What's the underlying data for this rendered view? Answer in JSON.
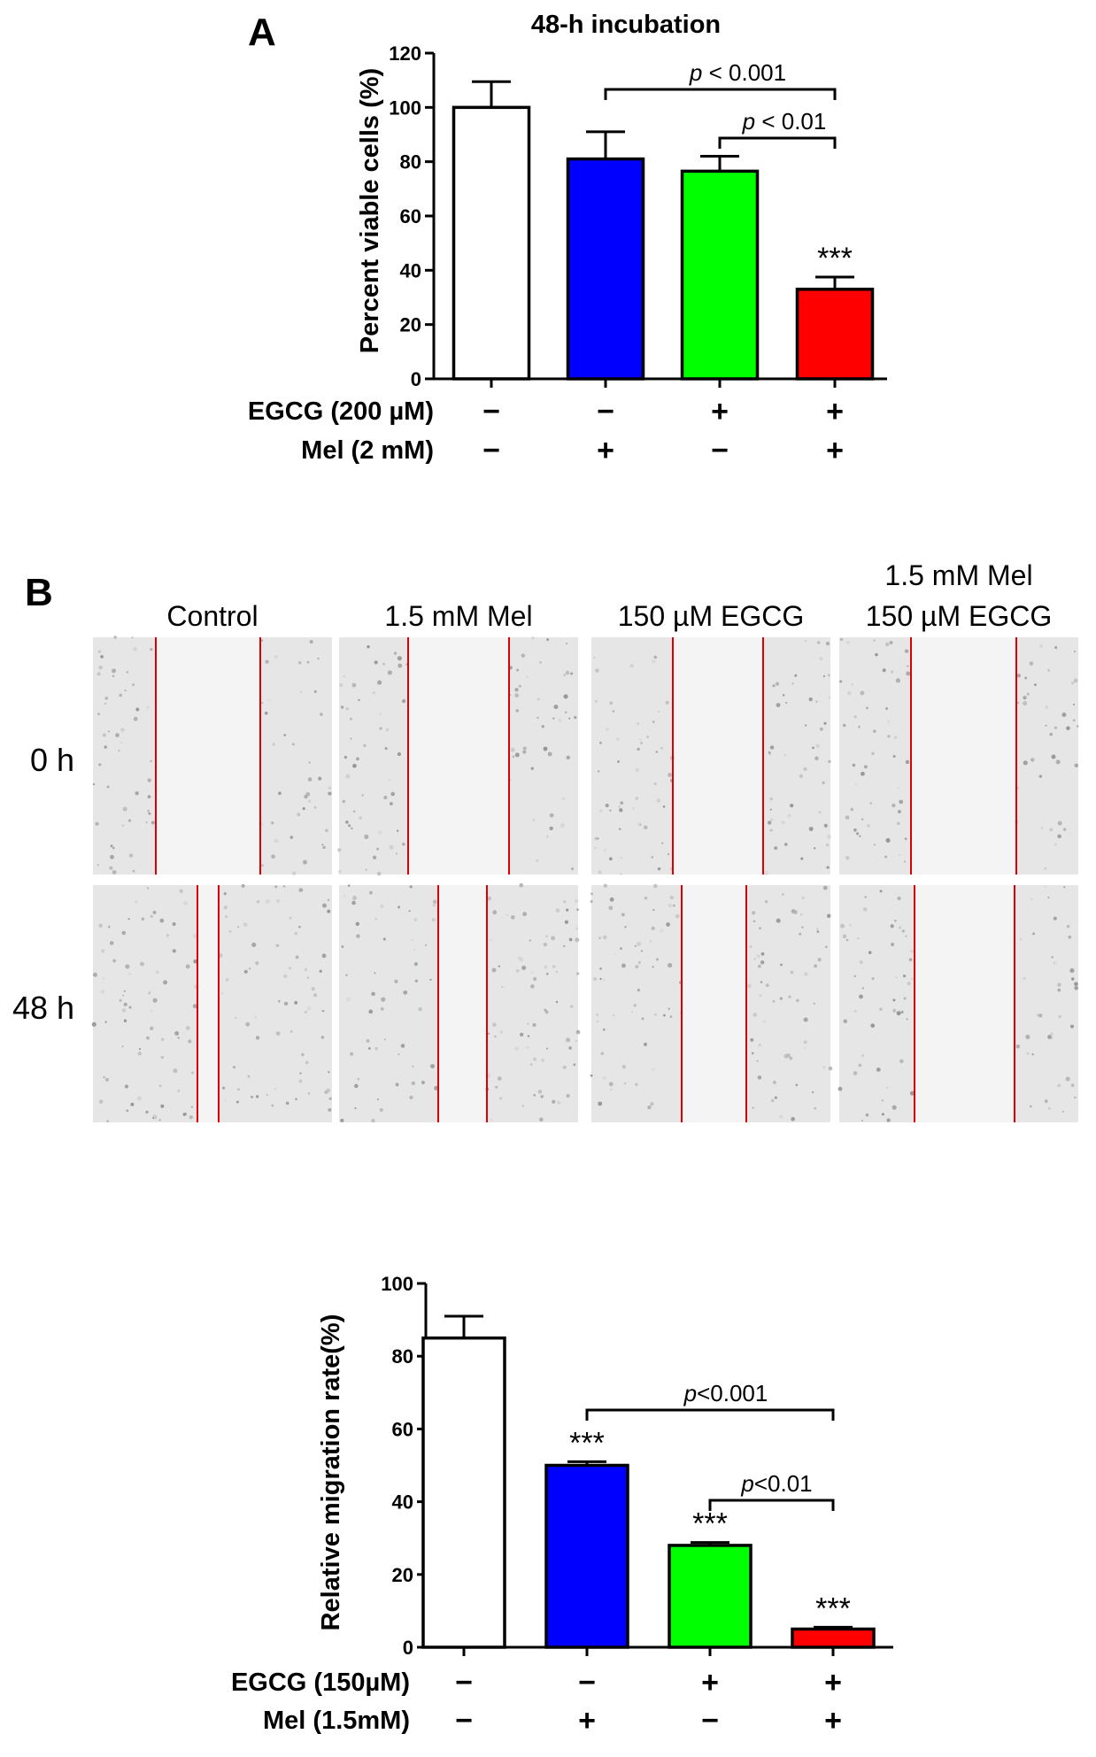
{
  "panel_a_letter": "A",
  "panel_b_letter": "B",
  "chart_data": [
    {
      "type": "bar",
      "title": "48-h incubation",
      "ylabel": "Percent viable cells (%)",
      "ylim": [
        0,
        120
      ],
      "yticks": [
        0,
        20,
        40,
        60,
        80,
        100,
        120
      ],
      "categories": [
        "Control",
        "Mel",
        "EGCG",
        "EGCG + Mel"
      ],
      "values": [
        100,
        81,
        76.5,
        33
      ],
      "errors": [
        9.5,
        10,
        5.5,
        4.5
      ],
      "colors": [
        "#ffffff",
        "#0000ff",
        "#00ff00",
        "#ff0000"
      ],
      "annotations": [
        "",
        "",
        "",
        "***"
      ],
      "treatments": [
        {
          "label": "EGCG (200 µM)",
          "signs": [
            "−",
            "−",
            "+",
            "+"
          ]
        },
        {
          "label": "Mel (2 mM)",
          "signs": [
            "−",
            "+",
            "−",
            "+"
          ]
        }
      ],
      "comparisons": [
        {
          "from": 1,
          "to": 3,
          "label_p": "p",
          "label_rest": " < 0.001"
        },
        {
          "from": 2,
          "to": 3,
          "label_p": "p",
          "label_rest": " < 0.01"
        }
      ]
    },
    {
      "type": "bar",
      "title": "",
      "ylabel": "Relative migration rate(%)",
      "ylim": [
        0,
        100
      ],
      "yticks": [
        0,
        20,
        40,
        60,
        80,
        100
      ],
      "categories": [
        "Control",
        "Mel",
        "EGCG",
        "EGCG + Mel"
      ],
      "values": [
        85,
        50,
        28,
        5
      ],
      "errors": [
        6,
        1,
        0.8,
        0.5
      ],
      "colors": [
        "#ffffff",
        "#0000ff",
        "#00ff00",
        "#ff0000"
      ],
      "annotations": [
        "",
        "***",
        "***",
        "***"
      ],
      "treatments": [
        {
          "label": "EGCG (150µM)",
          "signs": [
            "−",
            "−",
            "+",
            "+"
          ]
        },
        {
          "label": "Mel (1.5mM)",
          "signs": [
            "−",
            "+",
            "−",
            "+"
          ]
        }
      ],
      "comparisons": [
        {
          "from": 1,
          "to": 3,
          "label_p": "p",
          "label_rest": "<0.001"
        },
        {
          "from": 2,
          "to": 3,
          "label_p": "p",
          "label_rest": "<0.01"
        }
      ]
    }
  ],
  "micrographs": {
    "columns": [
      "Control",
      "1.5 mM Mel",
      "150 µM EGCG",
      "1.5 mM Mel\n150 µM EGCG"
    ],
    "column_line1": [
      "Control",
      "1.5 mM Mel",
      "150 µM EGCG",
      "1.5 mM Mel"
    ],
    "column_line2": [
      "",
      "",
      "",
      "150 µM EGCG"
    ],
    "rows": [
      "0 h",
      "48 h"
    ],
    "line_color": "#dd0000"
  }
}
